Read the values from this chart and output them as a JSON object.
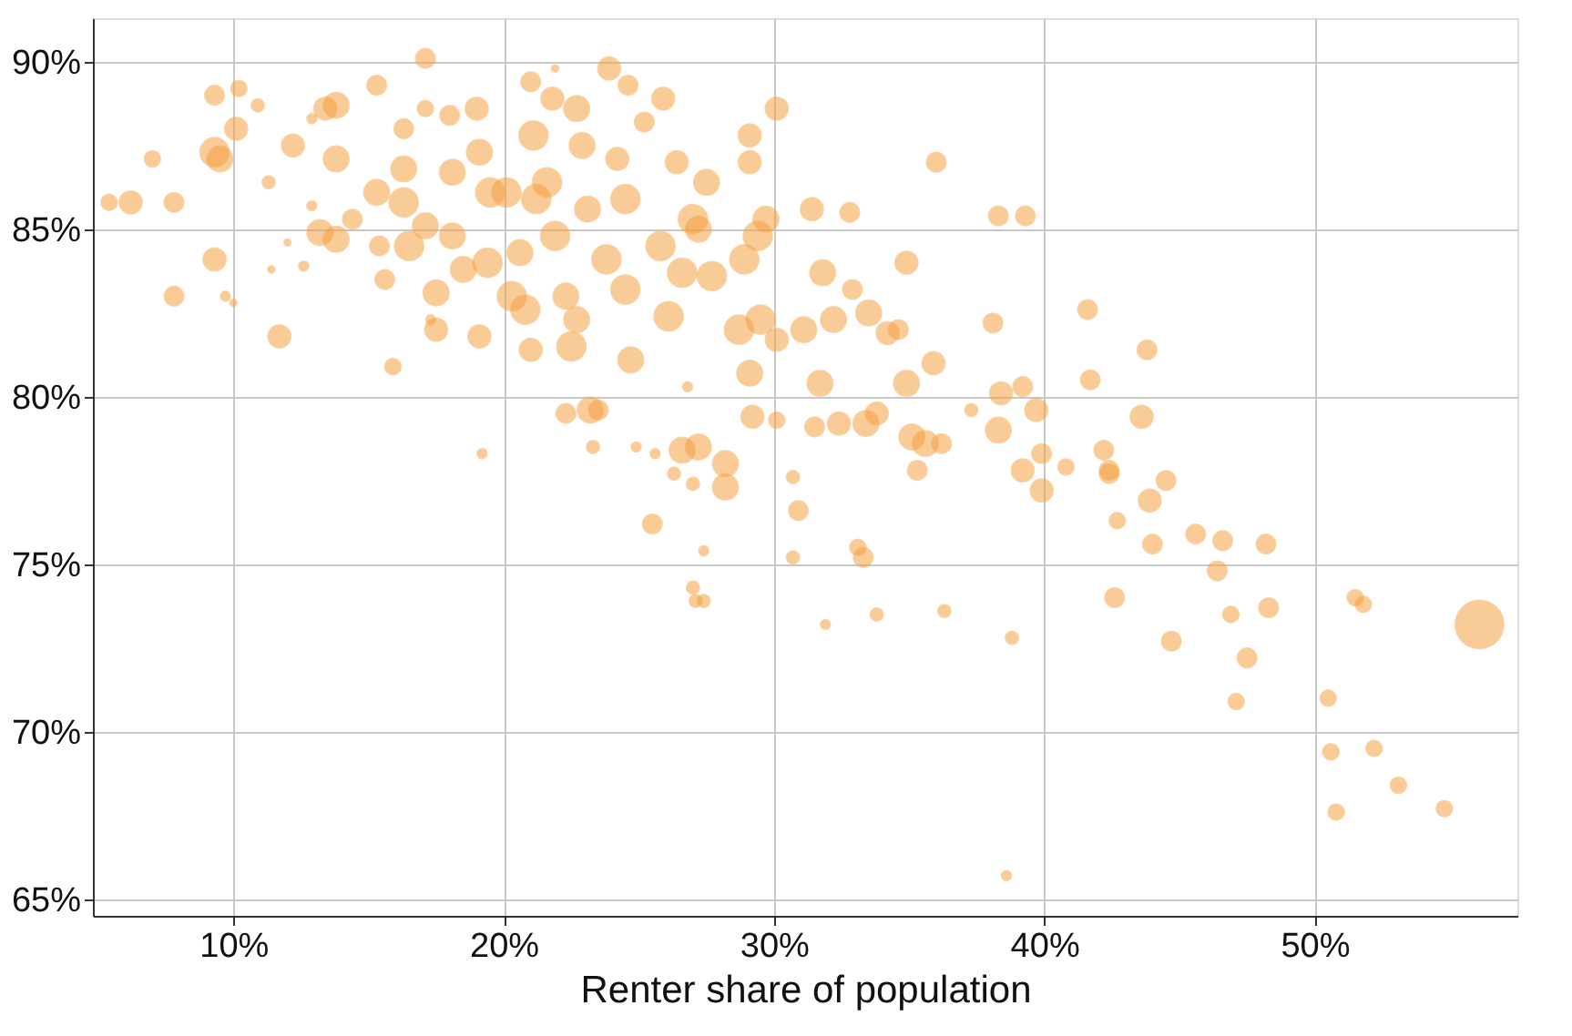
{
  "chart_data": {
    "type": "bubble",
    "xlabel": "Renter share of population",
    "xlim": [
      4.8,
      57.5
    ],
    "ylim": [
      64.5,
      91.3
    ],
    "xticks": [
      {
        "value": 10,
        "label": "10%"
      },
      {
        "value": 20,
        "label": "20%"
      },
      {
        "value": 30,
        "label": "30%"
      },
      {
        "value": 40,
        "label": "40%"
      },
      {
        "value": 50,
        "label": "50%"
      }
    ],
    "yticks": [
      {
        "value": 65,
        "label": "65%"
      },
      {
        "value": 70,
        "label": "70%"
      },
      {
        "value": 75,
        "label": "75%"
      },
      {
        "value": 80,
        "label": "80%"
      },
      {
        "value": 85,
        "label": "85%"
      },
      {
        "value": 90,
        "label": "90%"
      }
    ],
    "grid": true,
    "series": [
      {
        "color": "#f5a142",
        "x": [
          5.4,
          6.2,
          7.0,
          7.8,
          7.8,
          9.3,
          9.3,
          9.3,
          9.5,
          10.1,
          10.2,
          9.7,
          10,
          10.9,
          11.3,
          11.7,
          11.4,
          12,
          12.2,
          12.6,
          12.9,
          13.2,
          12.9,
          13.4,
          13.8,
          13.8,
          13.8,
          14.4,
          15.3,
          15.3,
          15.4,
          15.6,
          15.9,
          16.3,
          16.3,
          16.3,
          16.5,
          17.1,
          17.1,
          17.1,
          17.5,
          17.5,
          17.3,
          18.0,
          18.1,
          18.1,
          18.5,
          19.0,
          19.1,
          19.5,
          19.4,
          19.1,
          19.2,
          20.1,
          20.3,
          20.6,
          20.8,
          21.2,
          21.0,
          21.1,
          21.6,
          21.9,
          21.0,
          21.8,
          21.9,
          22.3,
          22.3,
          22.5,
          22.7,
          22.7,
          22.9,
          23.1,
          23.2,
          23.3,
          23.5,
          23.8,
          23.9,
          24.2,
          24.5,
          24.5,
          24.7,
          24.6,
          24.9,
          25.2,
          25.5,
          25.6,
          25.8,
          25.9,
          26.1,
          26.3,
          26.4,
          26.6,
          26.8,
          26.6,
          27.0,
          27.0,
          27.2,
          27.2,
          27.5,
          27.4,
          27.0,
          27.1,
          27.4,
          27.7,
          28.2,
          28.2,
          28.7,
          28.9,
          29.1,
          29.1,
          29.2,
          29.1,
          29.4,
          29.5,
          29.7,
          30.1,
          30.1,
          30.1,
          30.7,
          30.7,
          30.9,
          31.1,
          31.4,
          31.5,
          31.8,
          31.9,
          32.2,
          31.7,
          32.4,
          32.8,
          32.9,
          33.1,
          33.3,
          33.5,
          33.4,
          33.8,
          33.8,
          34.2,
          34.6,
          34.9,
          34.9,
          35.1,
          35.3,
          35.6,
          36.0,
          36.2,
          36.3,
          35.9,
          37.3,
          38.1,
          38.3,
          38.3,
          38.4,
          38.6,
          38.8,
          39.2,
          39.2,
          39.3,
          39.7,
          39.9,
          39.9,
          40.8,
          41.6,
          41.7,
          42.2,
          42.4,
          42.4,
          42.7,
          42.6,
          43.6,
          43.8,
          43.9,
          44.0,
          44.5,
          44.7,
          45.6,
          46.4,
          46.6,
          46.9,
          47.1,
          47.5,
          48.2,
          48.3,
          50.5,
          50.6,
          50.8,
          51.5,
          51.8,
          52.2,
          53.1,
          54.8,
          56.1
        ],
        "values": [
          85.8,
          85.8,
          87.1,
          85.8,
          83.0,
          89.0,
          87.3,
          84.1,
          87.1,
          88.0,
          89.2,
          83.0,
          82.8,
          88.7,
          86.4,
          81.8,
          83.8,
          84.6,
          87.5,
          83.9,
          88.3,
          84.9,
          85.7,
          88.6,
          88.7,
          87.1,
          84.7,
          85.3,
          86.1,
          89.3,
          84.5,
          83.5,
          80.9,
          88.0,
          86.8,
          85.8,
          84.5,
          88.6,
          90.1,
          85.1,
          83.1,
          82.0,
          82.3,
          88.4,
          86.7,
          84.8,
          83.8,
          88.6,
          87.3,
          86.1,
          84.0,
          81.8,
          78.3,
          86.1,
          83.0,
          84.3,
          82.6,
          85.9,
          89.4,
          87.8,
          86.4,
          84.8,
          81.4,
          88.9,
          89.8,
          83.0,
          79.5,
          81.5,
          82.3,
          88.6,
          87.5,
          85.6,
          79.6,
          78.5,
          79.6,
          84.1,
          89.8,
          87.1,
          83.2,
          85.9,
          81.1,
          89.3,
          78.5,
          88.2,
          76.2,
          78.3,
          84.5,
          88.9,
          82.4,
          77.7,
          87.0,
          83.7,
          80.3,
          78.4,
          85.3,
          77.4,
          85.0,
          78.5,
          86.4,
          75.4,
          74.3,
          73.9,
          73.9,
          83.6,
          78.0,
          77.3,
          82.0,
          84.1,
          87.0,
          87.8,
          79.4,
          80.7,
          84.8,
          82.3,
          85.3,
          88.6,
          81.7,
          79.3,
          75.2,
          77.6,
          76.6,
          82.0,
          85.6,
          79.1,
          83.7,
          73.2,
          82.3,
          80.4,
          79.2,
          85.5,
          83.2,
          75.5,
          75.2,
          82.5,
          79.2,
          79.5,
          73.5,
          81.9,
          82.0,
          80.4,
          84.0,
          78.8,
          77.8,
          78.6,
          87.0,
          78.6,
          73.6,
          81.0,
          79.6,
          82.2,
          85.4,
          79.0,
          80.1,
          65.7,
          72.8,
          80.3,
          77.8,
          85.4,
          79.6,
          78.3,
          77.2,
          77.9,
          82.6,
          80.5,
          78.4,
          77.8,
          77.7,
          76.3,
          74.0,
          79.4,
          81.4,
          76.9,
          75.6,
          77.5,
          72.7,
          75.9,
          74.8,
          75.7,
          73.5,
          70.9,
          72.2,
          75.6,
          73.7,
          71.0,
          69.4,
          67.6,
          74.0,
          73.8,
          69.5,
          68.4,
          67.7,
          73.2
        ],
        "sizes": [
          0.11,
          0.22,
          0.11,
          0.16,
          0.16,
          0.16,
          0.36,
          0.22,
          0.28,
          0.22,
          0.11,
          0.04,
          0.02,
          0.07,
          0.07,
          0.22,
          0.02,
          0.02,
          0.22,
          0.04,
          0.04,
          0.28,
          0.04,
          0.22,
          0.28,
          0.28,
          0.28,
          0.16,
          0.28,
          0.16,
          0.16,
          0.16,
          0.11,
          0.16,
          0.28,
          0.36,
          0.36,
          0.11,
          0.16,
          0.28,
          0.28,
          0.22,
          0.04,
          0.16,
          0.28,
          0.28,
          0.28,
          0.22,
          0.28,
          0.36,
          0.36,
          0.22,
          0.04,
          0.36,
          0.36,
          0.28,
          0.36,
          0.36,
          0.16,
          0.36,
          0.36,
          0.36,
          0.22,
          0.22,
          0.02,
          0.28,
          0.16,
          0.36,
          0.28,
          0.28,
          0.28,
          0.28,
          0.28,
          0.07,
          0.16,
          0.36,
          0.22,
          0.22,
          0.36,
          0.36,
          0.28,
          0.16,
          0.04,
          0.16,
          0.16,
          0.04,
          0.36,
          0.22,
          0.36,
          0.07,
          0.22,
          0.36,
          0.04,
          0.28,
          0.36,
          0.07,
          0.28,
          0.28,
          0.28,
          0.04,
          0.07,
          0.07,
          0.07,
          0.36,
          0.28,
          0.28,
          0.36,
          0.36,
          0.22,
          0.22,
          0.22,
          0.28,
          0.36,
          0.36,
          0.28,
          0.22,
          0.22,
          0.11,
          0.07,
          0.07,
          0.16,
          0.28,
          0.22,
          0.16,
          0.28,
          0.04,
          0.28,
          0.28,
          0.22,
          0.16,
          0.16,
          0.11,
          0.16,
          0.28,
          0.28,
          0.22,
          0.07,
          0.22,
          0.16,
          0.28,
          0.22,
          0.28,
          0.16,
          0.28,
          0.16,
          0.16,
          0.07,
          0.22,
          0.07,
          0.16,
          0.16,
          0.28,
          0.22,
          0.04,
          0.07,
          0.16,
          0.22,
          0.16,
          0.22,
          0.16,
          0.22,
          0.11,
          0.16,
          0.16,
          0.16,
          0.16,
          0.16,
          0.11,
          0.16,
          0.22,
          0.16,
          0.22,
          0.16,
          0.16,
          0.16,
          0.16,
          0.16,
          0.16,
          0.11,
          0.11,
          0.16,
          0.16,
          0.16,
          0.11,
          0.11,
          0.11,
          0.11,
          0.11,
          0.11,
          0.11,
          0.11,
          1
        ]
      }
    ]
  }
}
